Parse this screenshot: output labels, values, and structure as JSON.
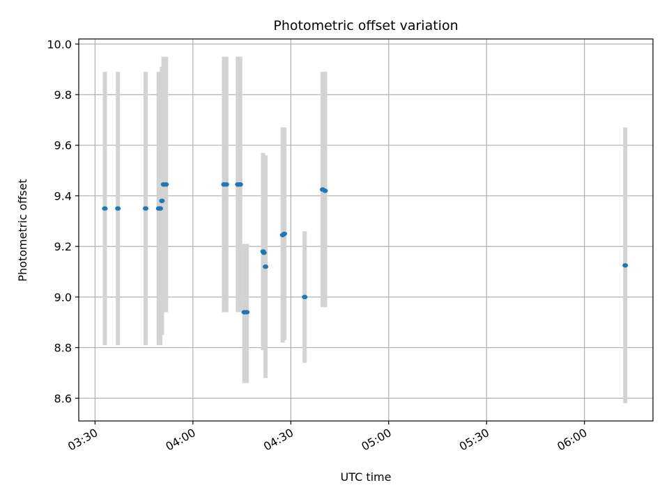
{
  "chart_data": {
    "type": "scatter",
    "title": "Photometric offset variation",
    "xlabel": "UTC time",
    "ylabel": "Photometric offset",
    "x_unit": "time (HH:MM, UTC)",
    "xlim": [
      "03:25",
      "06:21"
    ],
    "ylim": [
      8.51,
      10.02
    ],
    "x_ticks": [
      "03:30",
      "04:00",
      "04:30",
      "05:00",
      "05:30",
      "06:00"
    ],
    "y_ticks": [
      8.6,
      8.8,
      9.0,
      9.2,
      9.4,
      9.6,
      9.8,
      10.0
    ],
    "y_tick_labels": [
      "8.6",
      "8.8",
      "9.0",
      "9.2",
      "9.4",
      "9.6",
      "9.8",
      "10.0"
    ],
    "grid": true,
    "colors": {
      "points": "#1f77b4",
      "errorbars": "#d3d3d3",
      "grid": "#b0b0b0"
    },
    "series": [
      {
        "points": [
          {
            "x": "03:33:00",
            "y": 9.35,
            "ylow": 8.81,
            "yhigh": 9.89
          },
          {
            "x": "03:37:00",
            "y": 9.35,
            "ylow": 8.81,
            "yhigh": 9.89
          },
          {
            "x": "03:45:30",
            "y": 9.35,
            "ylow": 8.81,
            "yhigh": 9.89
          },
          {
            "x": "03:49:30",
            "y": 9.35,
            "ylow": 8.81,
            "yhigh": 9.89
          },
          {
            "x": "03:50:00",
            "y": 9.35,
            "ylow": 8.81,
            "yhigh": 9.89
          },
          {
            "x": "03:50:30",
            "y": 9.38,
            "ylow": 8.85,
            "yhigh": 9.91
          },
          {
            "x": "03:51:00",
            "y": 9.445,
            "ylow": 8.94,
            "yhigh": 9.95
          },
          {
            "x": "03:51:45",
            "y": 9.445,
            "ylow": 8.94,
            "yhigh": 9.95
          },
          {
            "x": "04:09:30",
            "y": 9.445,
            "ylow": 8.94,
            "yhigh": 9.95
          },
          {
            "x": "04:10:15",
            "y": 9.445,
            "ylow": 8.94,
            "yhigh": 9.95
          },
          {
            "x": "04:13:45",
            "y": 9.445,
            "ylow": 8.94,
            "yhigh": 9.95
          },
          {
            "x": "04:14:30",
            "y": 9.445,
            "ylow": 8.94,
            "yhigh": 9.95
          },
          {
            "x": "04:15:45",
            "y": 8.94,
            "ylow": 8.66,
            "yhigh": 9.21
          },
          {
            "x": "04:16:30",
            "y": 8.94,
            "ylow": 8.66,
            "yhigh": 9.21
          },
          {
            "x": "04:21:30",
            "y": 9.18,
            "ylow": 8.79,
            "yhigh": 9.57
          },
          {
            "x": "04:21:45",
            "y": 9.175,
            "ylow": 8.79,
            "yhigh": 9.56
          },
          {
            "x": "04:22:15",
            "y": 9.12,
            "ylow": 8.68,
            "yhigh": 9.56
          },
          {
            "x": "04:27:30",
            "y": 9.245,
            "ylow": 8.82,
            "yhigh": 9.67
          },
          {
            "x": "04:28:00",
            "y": 9.25,
            "ylow": 8.83,
            "yhigh": 9.67
          },
          {
            "x": "04:34:15",
            "y": 9.0,
            "ylow": 8.74,
            "yhigh": 9.26
          },
          {
            "x": "04:39:45",
            "y": 9.425,
            "ylow": 8.96,
            "yhigh": 9.89
          },
          {
            "x": "04:40:30",
            "y": 9.42,
            "ylow": 8.96,
            "yhigh": 9.89
          },
          {
            "x": "06:12:30",
            "y": 9.125,
            "ylow": 8.58,
            "yhigh": 9.67
          }
        ]
      }
    ]
  }
}
